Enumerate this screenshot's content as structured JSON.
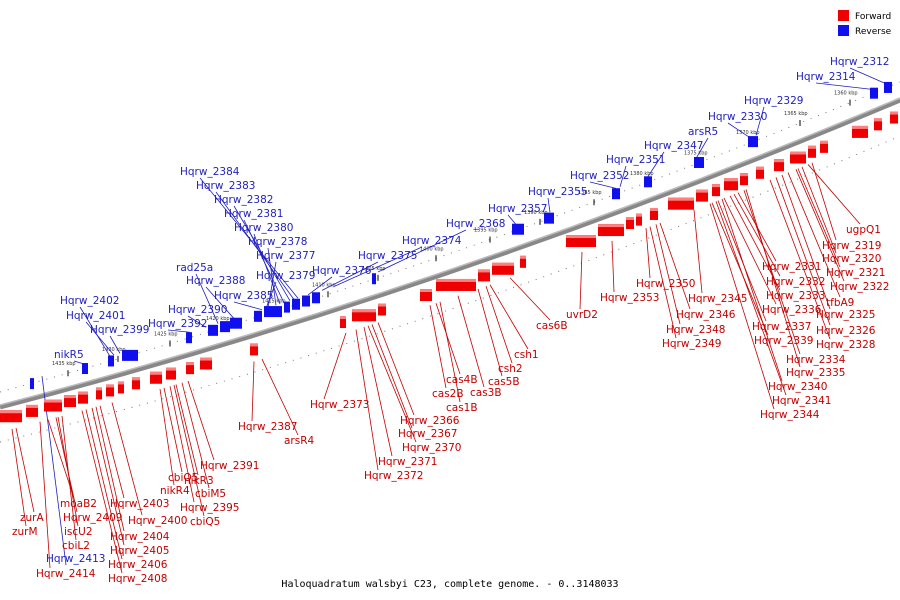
{
  "caption": "Haloquadratum walsbyi C23, complete genome. - 0..3148033",
  "legend": [
    {
      "label": "Forward",
      "color": "#ee0000"
    },
    {
      "label": "Reverse",
      "color": "#1010ee"
    }
  ],
  "ticks": [
    "1435 kbp",
    "1430 kbp",
    "1425 kbp",
    "1420 kbp",
    "1415 kbp",
    "1410 kbp",
    "1405 kbp",
    "1400 kbp",
    "1395 kbp",
    "1390 kbp",
    "1385 kbp",
    "1380 kbp",
    "1375 kbp",
    "1370 kbp",
    "1365 kbp",
    "1360 kbp"
  ],
  "forward_labels": [
    "zurA",
    "zurM",
    "moaB2",
    "Hqrw_2409",
    "iscU2",
    "cbiL2",
    "Hqrw_2414",
    "Hqrw_2403",
    "Hqrw_2400",
    "Hqrw_2404",
    "Hqrw_2405",
    "Hqrw_2406",
    "Hqrw_2408",
    "cbiO5",
    "nikR4",
    "nikR3",
    "cbiM5",
    "Hqrw_2395",
    "cbiQ5",
    "Hqrw_2391",
    "Hqrw_2387",
    "arsR4",
    "Hqrw_2373",
    "Hqrw_2366",
    "Hqrw_2367",
    "Hqrw_2370",
    "Hqrw_2371",
    "Hqrw_2372",
    "cas4B",
    "cas2B",
    "cas1B",
    "cas3B",
    "cas5B",
    "csh2",
    "csh1",
    "cas6B",
    "uvrD2",
    "Hqrw_2353",
    "Hqrw_2350",
    "Hqrw_2345",
    "Hqrw_2346",
    "Hqrw_2348",
    "Hqrw_2349",
    "Hqrw_2331",
    "Hqrw_2332",
    "Hqrw_2333",
    "Hqrw_2336",
    "Hqrw_2337",
    "Hqrw_2339",
    "Hqrw_2334",
    "Hqrw_2335",
    "Hqrw_2340",
    "Hqrw_2341",
    "Hqrw_2344",
    "ugpQ1",
    "Hqrw_2319",
    "Hqrw_2320",
    "Hqrw_2321",
    "Hqrw_2322",
    "tfbA9",
    "Hqrw_2325",
    "Hqrw_2326",
    "Hqrw_2328"
  ],
  "reverse_labels": [
    "Hqrw_2312",
    "Hqrw_2314",
    "Hqrw_2329",
    "Hqrw_2330",
    "arsR5",
    "Hqrw_2347",
    "Hqrw_2351",
    "Hqrw_2352",
    "Hqrw_2355",
    "Hqrw_2357",
    "Hqrw_2368",
    "Hqrw_2374",
    "Hqrw_2375",
    "Hqrw_2376",
    "Hqrw_2384",
    "Hqrw_2383",
    "Hqrw_2382",
    "Hqrw_2381",
    "Hqrw_2380",
    "Hqrw_2378",
    "Hqrw_2377",
    "Hqrw_2379",
    "rad25a",
    "Hqrw_2388",
    "Hqrw_2385",
    "Hqrw_2390",
    "Hqrw_2392",
    "Hqrw_2402",
    "Hqrw_2401",
    "Hqrw_2399",
    "nikR5",
    "Hqrw_2413"
  ]
}
